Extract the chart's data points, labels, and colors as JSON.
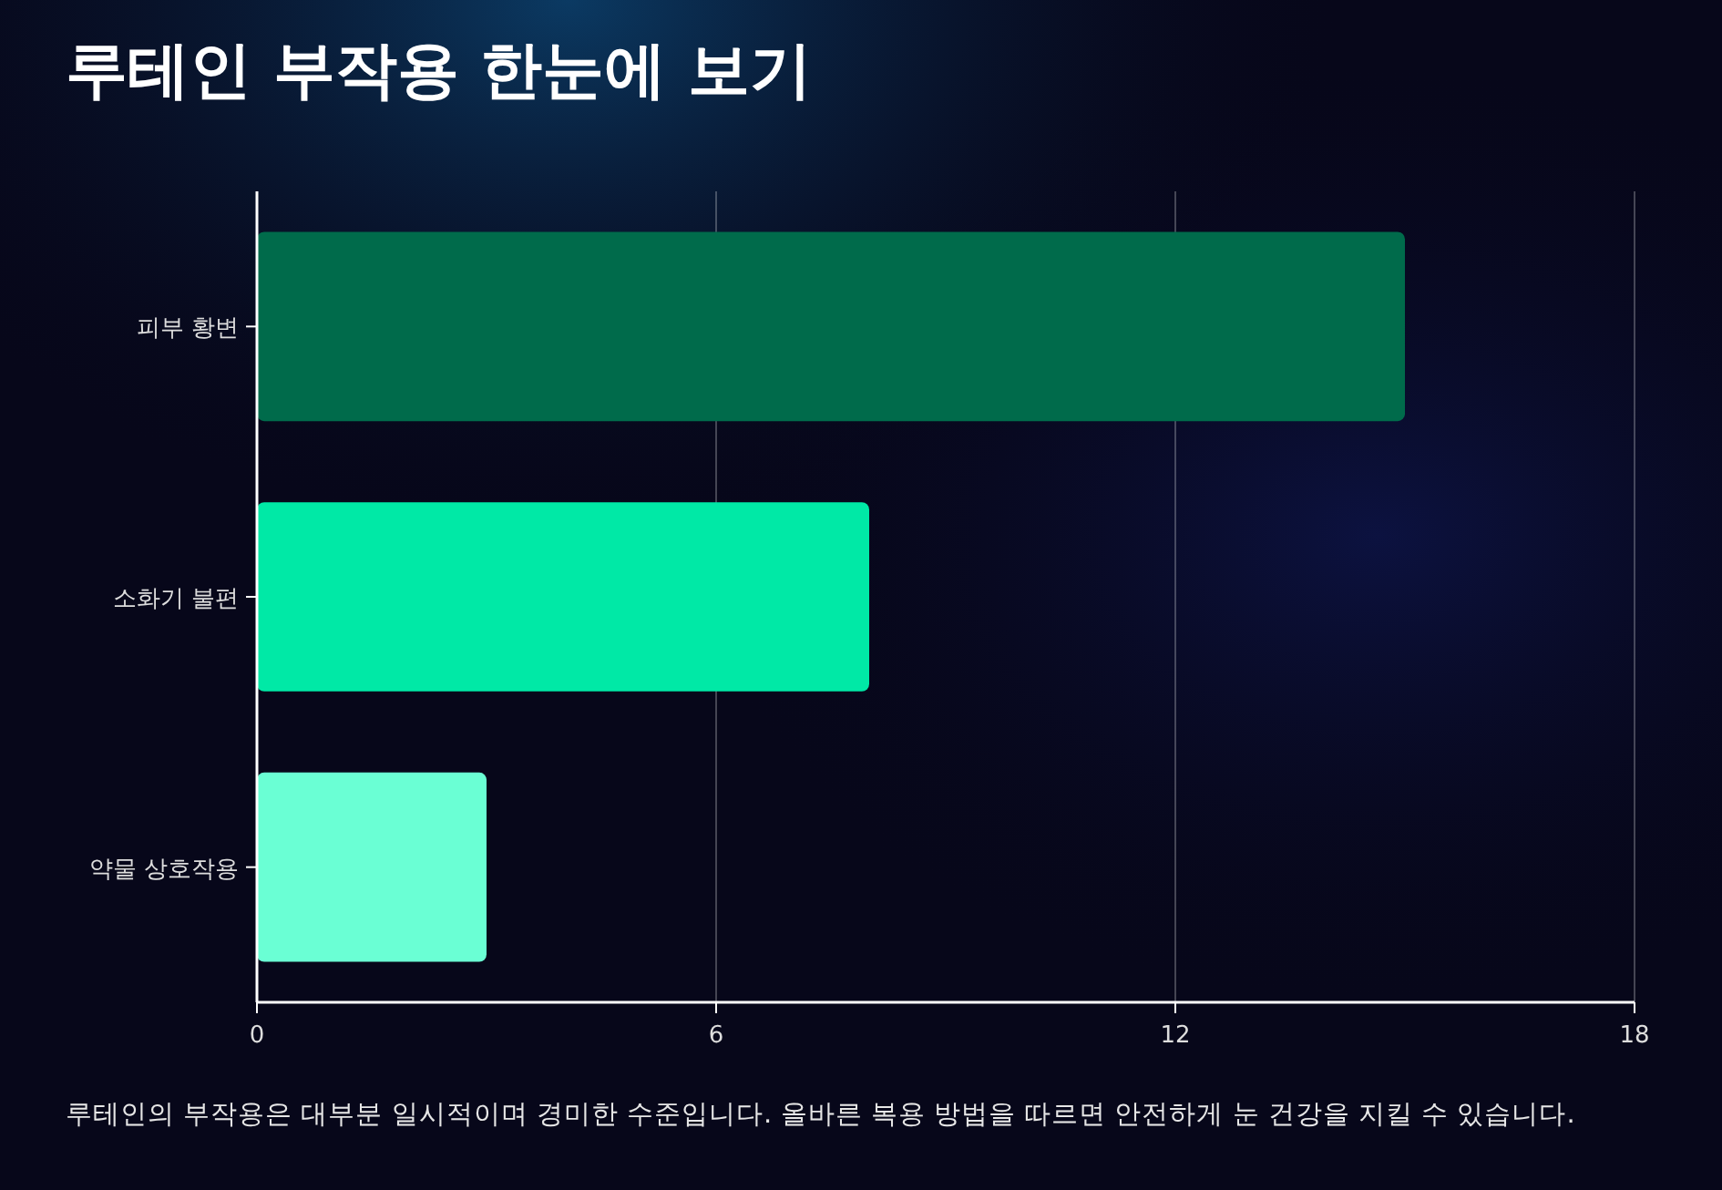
{
  "chart_data": {
    "type": "bar",
    "orientation": "horizontal",
    "title": "루테인 부작용 한눈에 보기",
    "categories": [
      "피부 황변",
      "소화기 불편",
      "약물 상호작용"
    ],
    "values": [
      15,
      8,
      3
    ],
    "colors": [
      "#006b4b",
      "#00e9a6",
      "#6affd4"
    ],
    "xlim": [
      0,
      18
    ],
    "xticks": [
      0,
      6,
      12,
      18
    ],
    "grid": "x",
    "annotations": [
      "루테인의 부작용은 대부분 일시적이며 경미한 수준입니다. 올바른 복용 방법을 따르면 안전하게 눈 건강을 지킬 수 있습니다."
    ]
  }
}
